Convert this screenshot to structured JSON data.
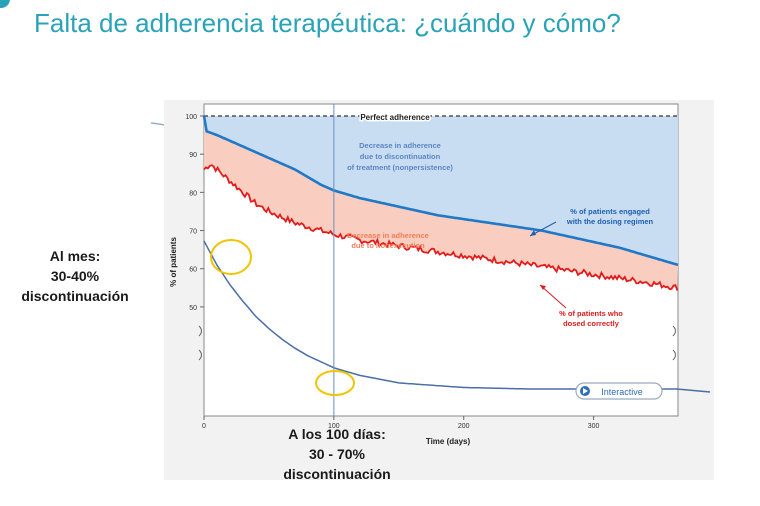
{
  "slide": {
    "title": "Falta de adherencia terapéutica: ¿cuándo y cómo?",
    "note_month": [
      "Al mes:",
      "30-40%",
      "discontinuación"
    ],
    "note_100": [
      "A los 100 días:",
      "30 - 70%",
      "discontinuación"
    ],
    "interactive_label": "Interactive"
  },
  "chart_data": {
    "type": "line",
    "xlabel": "Time (days)",
    "ylabel": "% of patients",
    "xlim": [
      0,
      365
    ],
    "ylim_upper": [
      45,
      100
    ],
    "x_ticks": [
      0,
      100,
      200,
      300
    ],
    "y_ticks": [
      50,
      60,
      70,
      80,
      90,
      100
    ],
    "reference_line": {
      "value": 100,
      "label": "Perfect adherence"
    },
    "marker_day": 100,
    "annotations": {
      "blue_area": [
        "Decrease in adherence",
        "due to discontinuation",
        "of treatment (nonpersistence)"
      ],
      "red_area": [
        "Decrease in adherence",
        "due to nonexecution"
      ],
      "blue_series": [
        "% of patients engaged",
        "with the dosing regimen"
      ],
      "red_series": [
        "% of patients who",
        "dosed correctly"
      ]
    },
    "series": [
      {
        "name": "% of patients engaged with the dosing regimen",
        "color": "#1f78c8",
        "x": [
          0,
          2,
          10,
          20,
          30,
          40,
          50,
          60,
          70,
          80,
          90,
          100,
          120,
          140,
          160,
          180,
          200,
          220,
          240,
          260,
          280,
          300,
          320,
          340,
          365
        ],
        "y": [
          100,
          96,
          95,
          93.5,
          92,
          90.5,
          89,
          87.5,
          86,
          84,
          82,
          80.5,
          78.5,
          77,
          75.5,
          74,
          73,
          72,
          71,
          70,
          68.5,
          67,
          65.5,
          63.5,
          61
        ]
      },
      {
        "name": "% of patients who dosed correctly",
        "color": "#e31b1b",
        "x": [
          0,
          5,
          10,
          20,
          30,
          40,
          50,
          60,
          70,
          80,
          90,
          100,
          120,
          140,
          160,
          180,
          200,
          220,
          240,
          260,
          280,
          300,
          320,
          340,
          365
        ],
        "y": [
          86,
          87.5,
          86,
          83,
          80,
          77,
          75,
          73.5,
          72,
          71,
          70,
          69,
          67.5,
          66.5,
          65.5,
          64.5,
          63.5,
          62.5,
          61.5,
          60.5,
          59.5,
          58.5,
          57.5,
          56.5,
          55
        ]
      },
      {
        "name": "",
        "color": "#4a6ea8",
        "x": [
          0,
          10,
          20,
          30,
          40,
          50,
          60,
          70,
          80,
          90,
          100,
          120,
          150,
          200,
          250,
          300,
          350,
          365
        ],
        "y_visual": [
          1.0,
          0.84,
          0.71,
          0.6,
          0.5,
          0.42,
          0.35,
          0.29,
          0.24,
          0.2,
          0.16,
          0.11,
          0.06,
          0.03,
          0.02,
          0.02,
          0.02,
          0.02
        ]
      }
    ],
    "highlight_circles_day": [
      20,
      100
    ]
  }
}
